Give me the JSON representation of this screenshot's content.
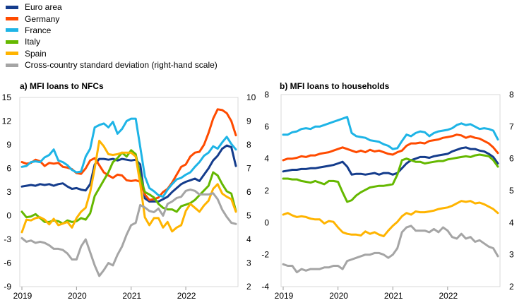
{
  "legend": [
    {
      "label": "Euro area",
      "color": "#143C8C"
    },
    {
      "label": "Germany",
      "color": "#FF4B00"
    },
    {
      "label": "France",
      "color": "#1EB4E6"
    },
    {
      "label": "Italy",
      "color": "#65B800"
    },
    {
      "label": "Spain",
      "color": "#FFB400"
    },
    {
      "label": "Cross-country standard deviation (right-hand scale)",
      "color": "#A5A5A5"
    }
  ],
  "chart_data": [
    {
      "type": "line",
      "title": "a) MFI loans to NFCs",
      "x_start": "2019-01",
      "x_end": "2022-12",
      "x_ticks": [
        "2019",
        "2020",
        "2021",
        "2022"
      ],
      "ylim": [
        -9,
        15
      ],
      "y_ticks": [
        "15",
        "12",
        "9",
        "6",
        "3",
        "0",
        "-3",
        "-6",
        "-9"
      ],
      "y2lim": [
        2,
        10
      ],
      "y2_ticks": [
        "10",
        "9",
        "8",
        "7",
        "6",
        "5",
        "4",
        "3",
        "2"
      ],
      "series": [
        {
          "name": "Euro area",
          "color": "#143C8C",
          "axis": "left",
          "values": [
            3.7,
            3.8,
            3.9,
            3.8,
            4.0,
            3.9,
            4.0,
            3.8,
            4.0,
            4.1,
            3.7,
            3.4,
            3.5,
            3.3,
            3.2,
            4.0,
            6.5,
            7.2,
            7.2,
            7.1,
            7.2,
            7.0,
            7.2,
            7.1,
            7.0,
            7.1,
            6.5,
            2.2,
            1.8,
            1.8,
            1.8,
            2.1,
            2.4,
            3.0,
            3.5,
            4.0,
            4.3,
            4.5,
            4.7,
            4.4,
            5.2,
            6.0,
            7.0,
            7.6,
            8.5,
            8.9,
            8.7,
            6.3
          ]
        },
        {
          "name": "Germany",
          "color": "#FF4B00",
          "axis": "left",
          "values": [
            6.8,
            6.6,
            6.7,
            7.1,
            6.9,
            6.3,
            6.7,
            6.6,
            6.7,
            6.2,
            6.1,
            5.9,
            5.4,
            5.3,
            6.0,
            7.0,
            7.3,
            6.4,
            5.5,
            5.1,
            4.8,
            5.2,
            5.1,
            4.5,
            4.4,
            4.5,
            4.3,
            2.7,
            2.0,
            2.1,
            2.3,
            3.0,
            3.4,
            4.2,
            5.2,
            6.2,
            6.5,
            7.5,
            8.0,
            8.1,
            9.0,
            10.5,
            12.3,
            13.5,
            13.4,
            13.0,
            12.0,
            10.2
          ]
        },
        {
          "name": "France",
          "color": "#1EB4E6",
          "axis": "left",
          "values": [
            6.2,
            6.3,
            6.8,
            6.9,
            6.8,
            7.4,
            7.7,
            8.4,
            7.0,
            6.8,
            6.4,
            5.8,
            5.5,
            5.6,
            7.5,
            8.5,
            11.2,
            11.5,
            11.7,
            11.2,
            11.9,
            10.4,
            11.0,
            12.0,
            12.3,
            12.3,
            8.7,
            5.0,
            3.5,
            3.1,
            2.6,
            2.4,
            3.3,
            4.0,
            4.6,
            4.8,
            5.2,
            5.5,
            6.2,
            6.8,
            7.6,
            8.0,
            8.8,
            8.5,
            9.3,
            10.0,
            9.1,
            8.4
          ]
        },
        {
          "name": "Italy",
          "color": "#65B800",
          "axis": "left",
          "values": [
            0.5,
            -0.2,
            -0.1,
            0.2,
            -0.3,
            -0.8,
            -0.8,
            -0.6,
            -0.7,
            -1.0,
            -0.6,
            -0.8,
            -0.7,
            -0.3,
            -0.5,
            0.3,
            2.5,
            3.5,
            4.5,
            5.5,
            6.8,
            7.3,
            8.0,
            7.5,
            8.3,
            7.8,
            5.0,
            3.0,
            2.7,
            2.3,
            1.5,
            1.0,
            0.8,
            0.8,
            0.5,
            1.2,
            1.4,
            1.6,
            2.0,
            2.6,
            3.2,
            3.8,
            5.5,
            5.1,
            4.0,
            3.1,
            2.8,
            0.6
          ]
        },
        {
          "name": "Spain",
          "color": "#FFB400",
          "axis": "left",
          "values": [
            -2.1,
            -0.5,
            -0.6,
            -0.3,
            -0.2,
            -0.5,
            -1.1,
            -0.4,
            -1.2,
            -1.0,
            -0.8,
            -1.5,
            -0.3,
            0.5,
            1.0,
            3.0,
            6.0,
            9.5,
            8.8,
            7.8,
            7.7,
            7.8,
            8.0,
            8.0,
            8.0,
            7.5,
            4.0,
            -0.2,
            -1.2,
            -0.3,
            -0.3,
            -1.5,
            -0.8,
            -2.0,
            -1.5,
            -1.2,
            0.6,
            1.5,
            1.0,
            0.5,
            1.3,
            1.9,
            3.4,
            4.0,
            2.8,
            2.4,
            2.1,
            0.5
          ]
        },
        {
          "name": "Cross-country standard deviation (right-hand scale)",
          "color": "#A5A5A5",
          "axis": "right",
          "values": [
            4.05,
            3.9,
            3.95,
            3.85,
            3.9,
            3.85,
            3.75,
            3.6,
            3.6,
            3.55,
            3.4,
            3.15,
            3.15,
            3.7,
            4.0,
            3.45,
            2.9,
            2.45,
            2.7,
            3.0,
            2.9,
            3.35,
            3.7,
            4.2,
            4.6,
            4.7,
            5.45,
            5.35,
            5.2,
            5.15,
            5.3,
            5.0,
            5.5,
            5.6,
            5.75,
            5.8,
            6.05,
            6.1,
            6.05,
            5.9,
            5.9,
            5.9,
            5.95,
            5.7,
            5.25,
            4.95,
            4.7,
            4.65
          ]
        }
      ]
    },
    {
      "type": "line",
      "title": "b) MFI loans to households",
      "x_start": "2019-01",
      "x_end": "2022-12",
      "x_ticks": [
        "2019",
        "2020",
        "2021",
        "2022"
      ],
      "ylim": [
        -4,
        8
      ],
      "y_ticks": [
        "8",
        "6",
        "4",
        "2",
        "0",
        "-2",
        "-4"
      ],
      "y2lim": [
        2,
        8
      ],
      "y2_ticks": [
        "8",
        "7",
        "6",
        "5",
        "4",
        "3",
        "2"
      ],
      "series": [
        {
          "name": "Euro area",
          "color": "#143C8C",
          "axis": "left",
          "values": [
            3.2,
            3.25,
            3.3,
            3.3,
            3.35,
            3.35,
            3.4,
            3.4,
            3.45,
            3.5,
            3.55,
            3.6,
            3.7,
            3.8,
            3.5,
            3.0,
            3.05,
            3.05,
            3.0,
            3.05,
            3.1,
            3.0,
            3.1,
            3.1,
            3.0,
            3.1,
            3.4,
            3.7,
            3.9,
            4.0,
            4.1,
            4.1,
            4.05,
            4.15,
            4.2,
            4.25,
            4.3,
            4.45,
            4.55,
            4.65,
            4.7,
            4.6,
            4.6,
            4.5,
            4.45,
            4.3,
            4.1,
            3.7
          ]
        },
        {
          "name": "Germany",
          "color": "#FF4B00",
          "axis": "left",
          "values": [
            3.9,
            4.0,
            4.0,
            4.05,
            4.15,
            4.1,
            4.2,
            4.2,
            4.3,
            4.35,
            4.4,
            4.5,
            4.6,
            4.7,
            4.6,
            4.5,
            4.4,
            4.5,
            4.4,
            4.55,
            4.45,
            4.5,
            4.4,
            4.3,
            4.25,
            4.4,
            4.5,
            4.8,
            4.95,
            4.95,
            5.0,
            4.95,
            5.1,
            5.15,
            5.2,
            5.3,
            5.35,
            5.4,
            5.5,
            5.45,
            5.3,
            5.4,
            5.3,
            5.25,
            5.1,
            4.95,
            4.7,
            4.35
          ]
        },
        {
          "name": "France",
          "color": "#1EB4E6",
          "axis": "left",
          "values": [
            5.5,
            5.5,
            5.65,
            5.7,
            5.85,
            5.9,
            5.85,
            6.0,
            6.0,
            6.1,
            6.2,
            6.3,
            6.4,
            6.5,
            6.6,
            5.6,
            5.4,
            5.35,
            5.3,
            5.15,
            5.1,
            5.05,
            4.9,
            4.8,
            4.6,
            4.65,
            5.1,
            5.5,
            5.4,
            5.6,
            5.7,
            5.65,
            5.4,
            5.6,
            5.7,
            5.75,
            5.8,
            5.9,
            6.1,
            6.2,
            6.1,
            6.15,
            6.0,
            5.85,
            5.9,
            5.85,
            5.75,
            5.2
          ]
        },
        {
          "name": "Italy",
          "color": "#65B800",
          "axis": "left",
          "values": [
            2.75,
            2.75,
            2.7,
            2.7,
            2.6,
            2.55,
            2.5,
            2.6,
            2.5,
            2.4,
            2.6,
            2.6,
            2.55,
            1.9,
            1.3,
            1.4,
            1.7,
            1.9,
            2.05,
            2.2,
            2.25,
            2.3,
            2.3,
            2.35,
            2.4,
            3.0,
            3.9,
            4.0,
            3.9,
            3.8,
            3.8,
            3.7,
            3.75,
            3.8,
            3.85,
            3.85,
            3.95,
            4.0,
            4.05,
            4.1,
            4.15,
            4.1,
            4.2,
            4.25,
            4.2,
            4.15,
            3.9,
            3.5
          ]
        },
        {
          "name": "Spain",
          "color": "#FFB400",
          "axis": "left",
          "values": [
            0.5,
            0.6,
            0.45,
            0.35,
            0.4,
            0.35,
            0.25,
            0.2,
            0.2,
            -0.05,
            0.1,
            0.05,
            -0.3,
            -0.6,
            -0.7,
            -0.75,
            -0.75,
            -0.8,
            -0.55,
            -0.7,
            -0.6,
            -0.75,
            -0.85,
            -0.5,
            -0.2,
            0.05,
            0.4,
            0.6,
            0.5,
            0.7,
            0.65,
            0.65,
            0.7,
            0.75,
            0.85,
            0.9,
            0.95,
            1.05,
            1.2,
            1.35,
            1.3,
            1.35,
            1.2,
            1.25,
            1.15,
            1.0,
            0.85,
            0.6
          ]
        },
        {
          "name": "Cross-country standard deviation (right-hand scale)",
          "color": "#A5A5A5",
          "axis": "right",
          "values": [
            2.7,
            2.65,
            2.65,
            2.45,
            2.55,
            2.5,
            2.55,
            2.55,
            2.55,
            2.6,
            2.6,
            2.65,
            2.65,
            2.55,
            2.8,
            2.85,
            2.9,
            2.95,
            3.0,
            3.0,
            3.05,
            3.05,
            3.0,
            2.9,
            3.0,
            3.2,
            3.7,
            3.85,
            3.9,
            3.75,
            3.75,
            3.75,
            3.7,
            3.8,
            3.7,
            3.85,
            3.75,
            3.55,
            3.5,
            3.65,
            3.5,
            3.55,
            3.4,
            3.45,
            3.35,
            3.25,
            3.2,
            2.95
          ]
        }
      ]
    }
  ]
}
